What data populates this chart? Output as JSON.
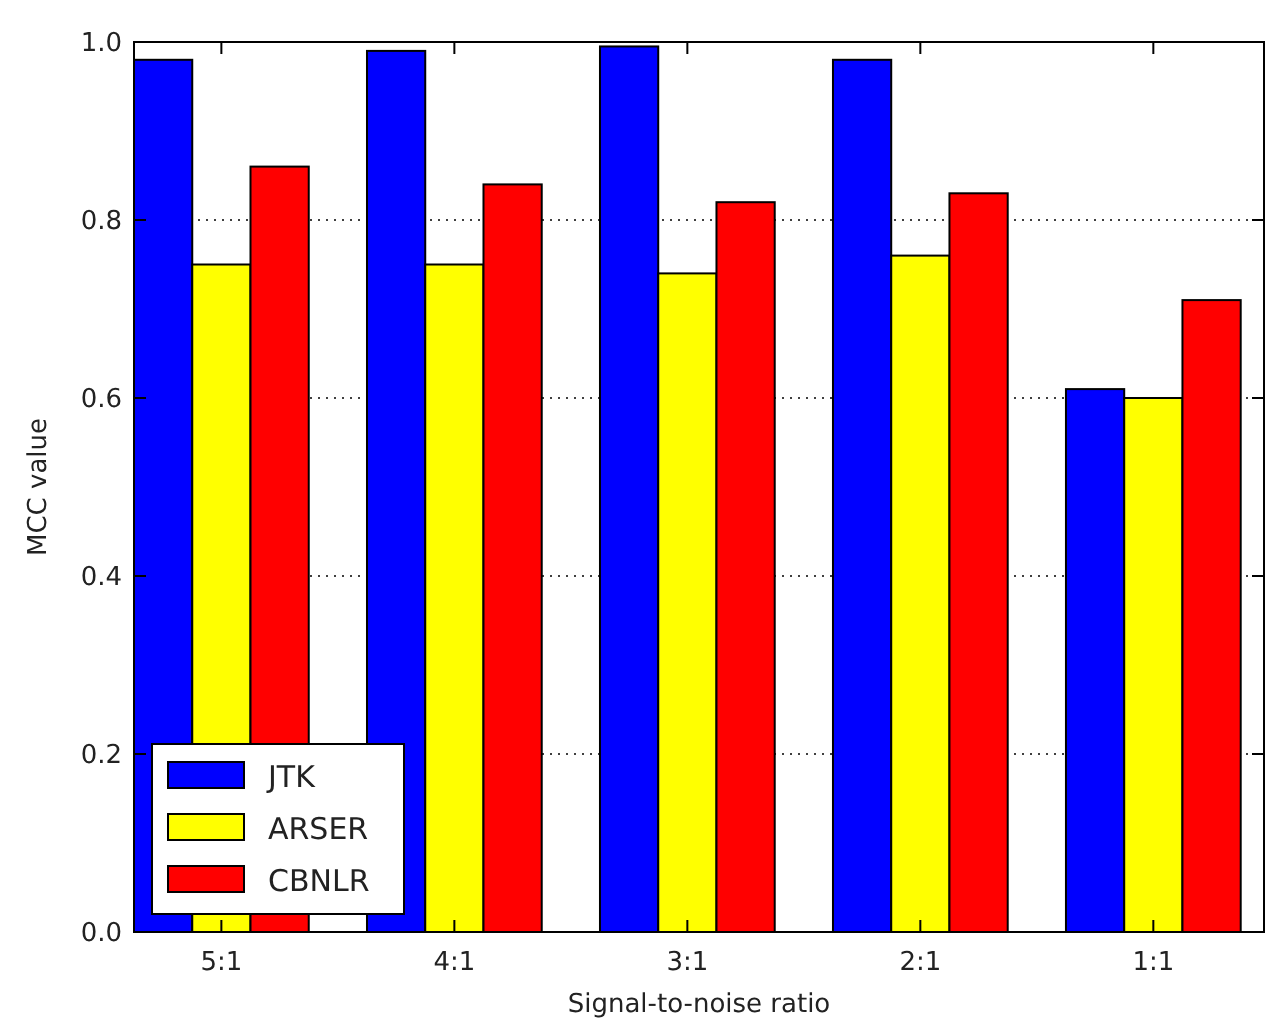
{
  "chart_data": {
    "type": "bar",
    "xlabel": "Signal-to-noise ratio",
    "ylabel": "MCC value",
    "categories": [
      "5:1",
      "4:1",
      "3:1",
      "2:1",
      "1:1"
    ],
    "series": [
      {
        "name": "JTK",
        "color": "#0000ff",
        "values": [
          0.98,
          0.99,
          0.995,
          0.98,
          0.61
        ]
      },
      {
        "name": "ARSER",
        "color": "#ffff00",
        "values": [
          0.75,
          0.75,
          0.74,
          0.76,
          0.6
        ]
      },
      {
        "name": "CBNLR",
        "color": "#ff0000",
        "values": [
          0.86,
          0.84,
          0.82,
          0.83,
          0.71
        ]
      }
    ],
    "ylim": [
      0,
      1
    ],
    "yticks": [
      {
        "value": 0,
        "label": "0.0"
      },
      {
        "value": 0.2,
        "label": "0.2"
      },
      {
        "value": 0.4,
        "label": "0.4"
      },
      {
        "value": 0.6,
        "label": "0.6"
      },
      {
        "value": 0.8,
        "label": "0.8"
      },
      {
        "value": 1,
        "label": "1.0"
      }
    ],
    "grid": "y",
    "legend": "bottom left"
  }
}
